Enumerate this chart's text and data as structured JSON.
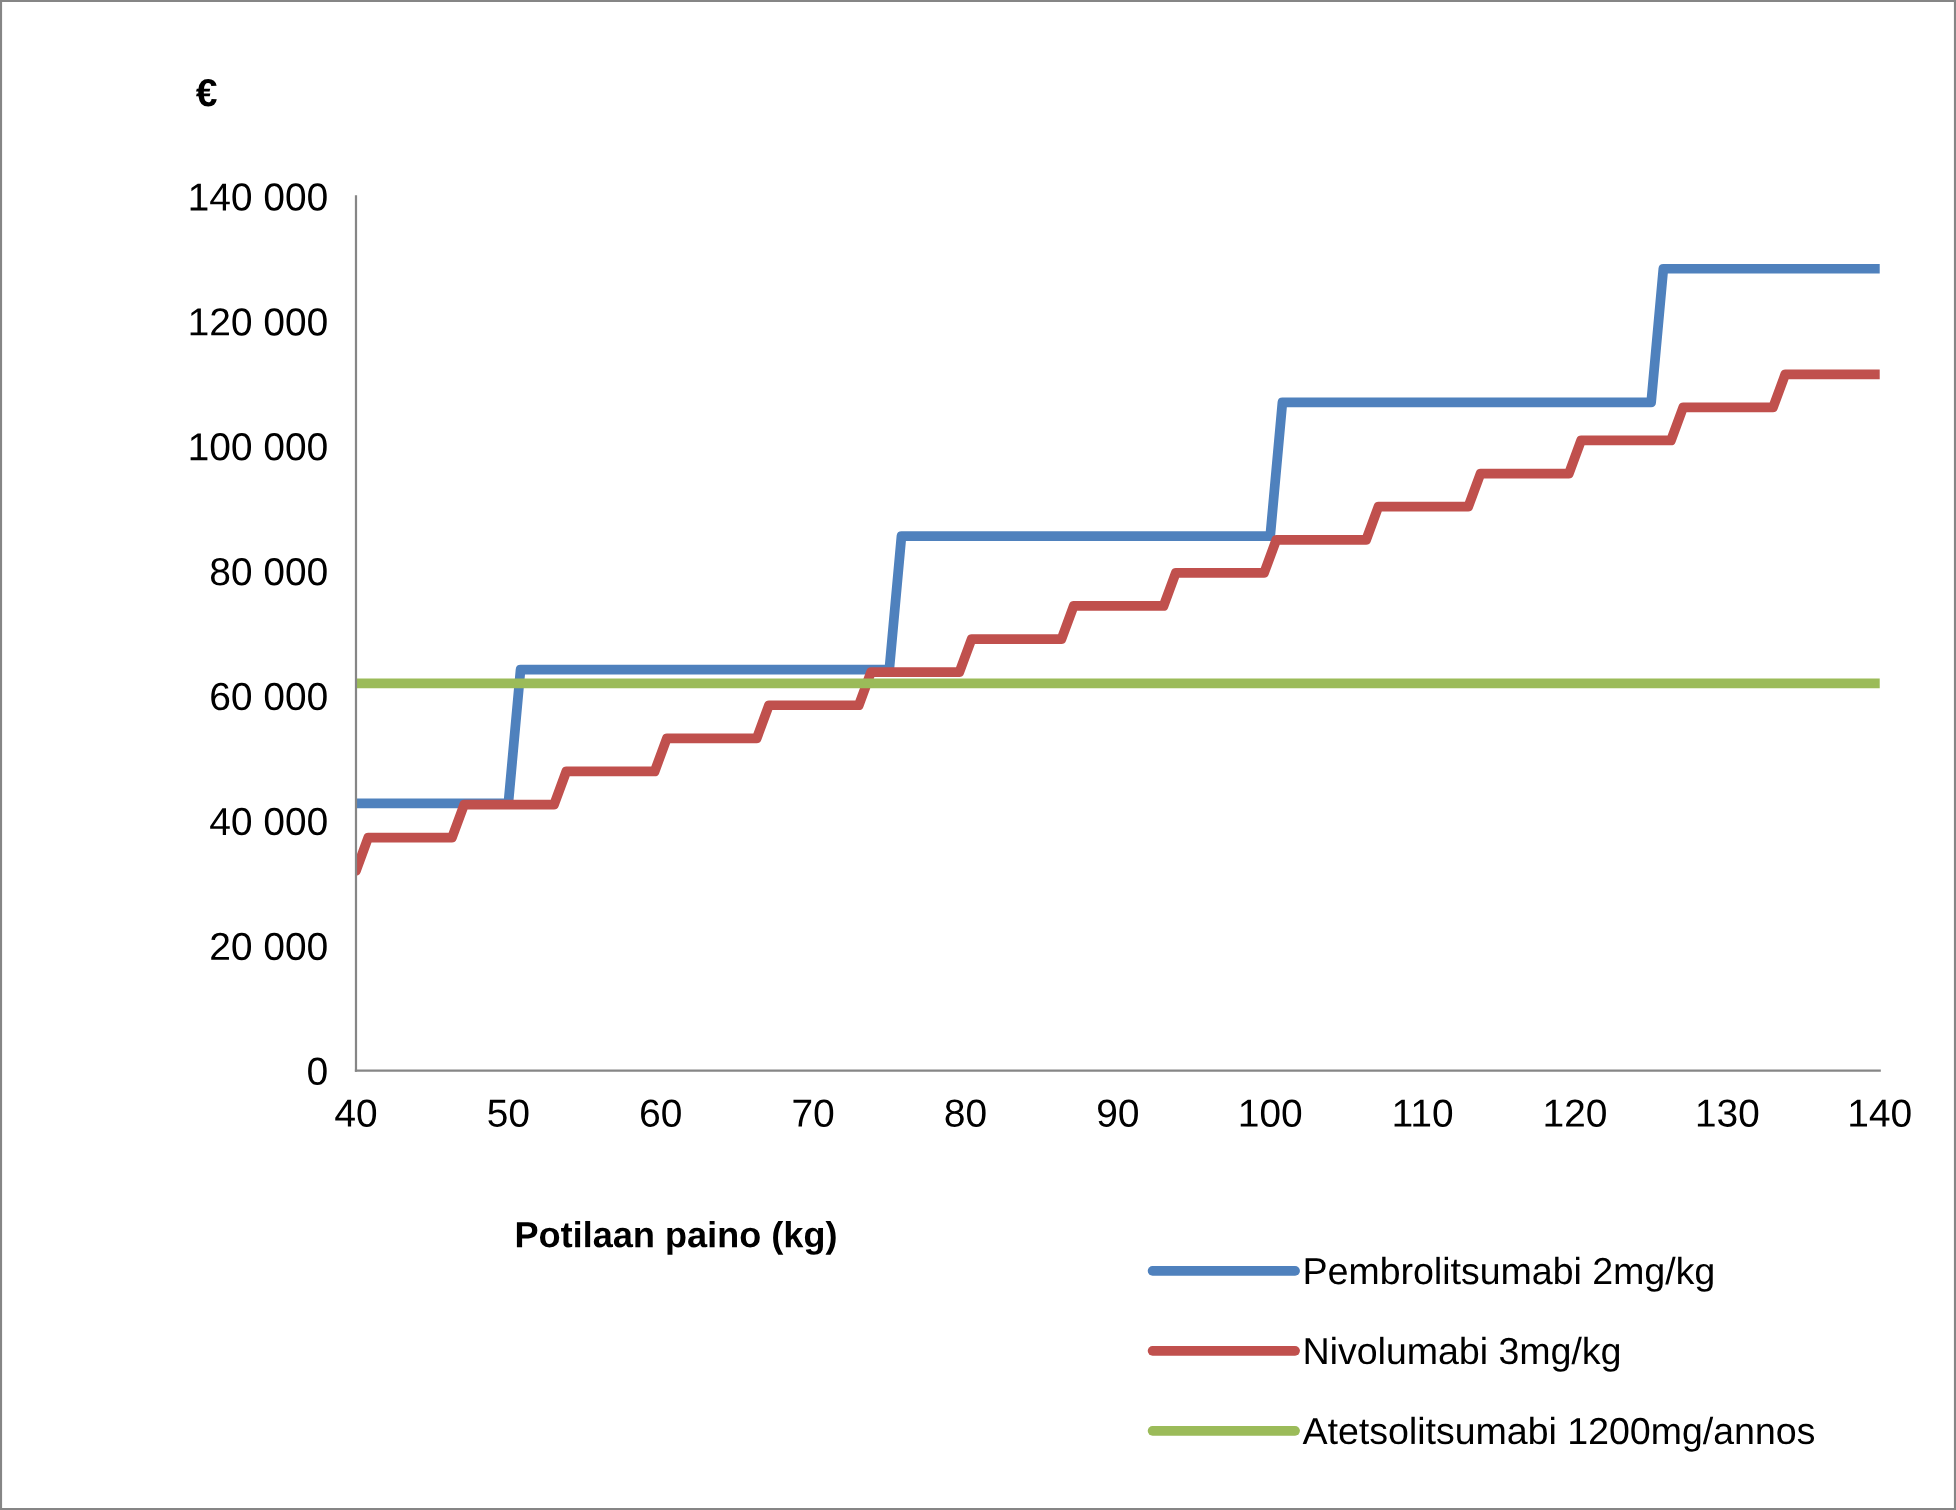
{
  "chart_data": {
    "type": "line",
    "ylabel": "€",
    "xlabel": "Potilaan paino (kg)",
    "xlim": [
      40,
      140
    ],
    "xticks": [
      40,
      50,
      60,
      70,
      80,
      90,
      100,
      110,
      120,
      130,
      140
    ],
    "ylim": [
      0,
      140000
    ],
    "yticks": [
      {
        "value": 0,
        "label": "0"
      },
      {
        "value": 20000,
        "label": "20 000"
      },
      {
        "value": 40000,
        "label": "40 000"
      },
      {
        "value": 60000,
        "label": "60 000"
      },
      {
        "value": 80000,
        "label": "80 000"
      },
      {
        "value": 100000,
        "label": "100 000"
      },
      {
        "value": 120000,
        "label": "120 000"
      },
      {
        "value": 140000,
        "label": "140 000"
      }
    ],
    "grid": false,
    "legend": "bottom right",
    "marker": "none",
    "line_style": "solid",
    "series": [
      {
        "name": "Pembrolitsumabi 2mg/kg",
        "color": "#4f81bd",
        "x": [
          40,
          50,
          50.8,
          75,
          75.8,
          100,
          100.8,
          125,
          125.8,
          140
        ],
        "values": [
          42800,
          42800,
          64200,
          64200,
          85600,
          85600,
          107000,
          107000,
          128400,
          128400
        ]
      },
      {
        "name": "Nivolumabi 3mg/kg",
        "color": "#c0504d",
        "x": [
          40,
          40.8,
          46.3,
          47.1,
          53,
          53.8,
          59.6,
          60.4,
          66.3,
          67.1,
          73,
          73.8,
          79.6,
          80.4,
          86.3,
          87.1,
          93,
          93.8,
          99.6,
          100.4,
          106.3,
          107.1,
          113,
          113.8,
          119.6,
          120.4,
          126.3,
          127.1,
          133,
          133.8,
          140
        ],
        "values": [
          32000,
          37300,
          37300,
          42600,
          42600,
          47900,
          47900,
          53200,
          53200,
          58500,
          58500,
          63800,
          63800,
          69100,
          69100,
          74400,
          74400,
          79700,
          79700,
          85000,
          85000,
          90300,
          90300,
          95600,
          95600,
          100900,
          100900,
          106200,
          106200,
          111500,
          111500
        ]
      },
      {
        "name": "Atetsolitsumabi 1200mg/annos",
        "color": "#9bbb59",
        "x": [
          40,
          140
        ],
        "values": [
          62000,
          62000
        ]
      }
    ]
  }
}
